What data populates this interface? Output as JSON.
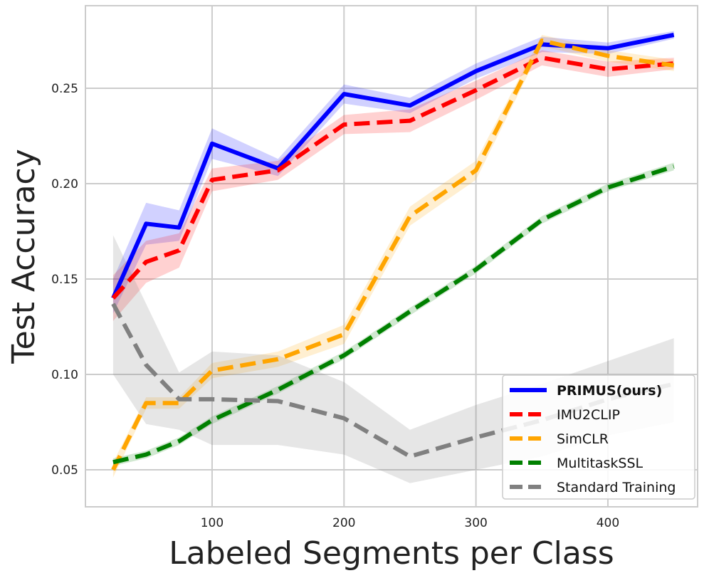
{
  "chart_data": {
    "type": "line",
    "title": "",
    "xlabel": "Labeled Segments per Class",
    "ylabel": "Test Accuracy",
    "xlim": [
      4,
      468
    ],
    "ylim": [
      0.0306,
      0.2933
    ],
    "xticks": [
      100,
      200,
      300,
      400
    ],
    "xtick_labels": [
      "100",
      "200",
      "300",
      "400"
    ],
    "yticks": [
      0.05,
      0.1,
      0.15,
      0.2,
      0.25
    ],
    "ytick_labels": [
      "0.05",
      "0.10",
      "0.15",
      "0.20",
      "0.25"
    ],
    "grid": true,
    "legend_position": "bottom-right",
    "x": [
      25,
      50,
      75,
      100,
      150,
      200,
      250,
      300,
      350,
      400,
      450
    ],
    "series": [
      {
        "name": "PRIMUS(ours)",
        "color": "#0000ff",
        "style": "solid",
        "values": [
          0.14,
          0.179,
          0.177,
          0.221,
          0.208,
          0.247,
          0.241,
          0.259,
          0.273,
          0.271,
          0.278
        ],
        "lower": [
          0.132,
          0.168,
          0.17,
          0.213,
          0.204,
          0.242,
          0.237,
          0.255,
          0.269,
          0.268,
          0.276
        ],
        "upper": [
          0.15,
          0.19,
          0.186,
          0.229,
          0.213,
          0.252,
          0.245,
          0.263,
          0.277,
          0.274,
          0.28
        ]
      },
      {
        "name": "IMU2CLIP",
        "color": "#ff0000",
        "style": "dashed",
        "values": [
          0.14,
          0.159,
          0.165,
          0.202,
          0.207,
          0.231,
          0.233,
          0.249,
          0.266,
          0.26,
          0.263
        ],
        "lower": [
          0.128,
          0.148,
          0.156,
          0.196,
          0.202,
          0.226,
          0.227,
          0.244,
          0.262,
          0.256,
          0.26
        ],
        "upper": [
          0.152,
          0.17,
          0.174,
          0.208,
          0.212,
          0.236,
          0.239,
          0.254,
          0.27,
          0.264,
          0.266
        ]
      },
      {
        "name": "SimCLR",
        "color": "#ffa500",
        "style": "dashed",
        "values": [
          0.05,
          0.085,
          0.085,
          0.102,
          0.108,
          0.121,
          0.183,
          0.207,
          0.275,
          0.267,
          0.262
        ],
        "lower": [
          0.046,
          0.082,
          0.082,
          0.098,
          0.104,
          0.116,
          0.178,
          0.202,
          0.272,
          0.264,
          0.259
        ],
        "upper": [
          0.054,
          0.088,
          0.088,
          0.106,
          0.112,
          0.126,
          0.188,
          0.212,
          0.278,
          0.27,
          0.265
        ]
      },
      {
        "name": "MultitaskSSL",
        "color": "#008000",
        "style": "dashed",
        "values": [
          0.054,
          0.058,
          0.065,
          0.076,
          0.092,
          0.11,
          0.133,
          0.155,
          0.181,
          0.198,
          0.209
        ],
        "lower": [
          0.052,
          0.056,
          0.063,
          0.074,
          0.09,
          0.108,
          0.131,
          0.153,
          0.179,
          0.196,
          0.207
        ],
        "upper": [
          0.056,
          0.06,
          0.067,
          0.078,
          0.094,
          0.112,
          0.135,
          0.157,
          0.183,
          0.2,
          0.211
        ]
      },
      {
        "name": "Standard Training",
        "color": "#808080",
        "style": "dashed",
        "values": [
          0.137,
          0.105,
          0.087,
          0.087,
          0.086,
          0.077,
          0.057,
          0.067,
          0.076,
          0.087,
          0.095
        ],
        "lower": [
          0.1,
          0.074,
          0.071,
          0.063,
          0.063,
          0.058,
          0.043,
          0.05,
          0.057,
          0.068,
          0.075
        ],
        "upper": [
          0.173,
          0.137,
          0.101,
          0.112,
          0.11,
          0.096,
          0.071,
          0.084,
          0.095,
          0.107,
          0.119
        ]
      }
    ]
  }
}
